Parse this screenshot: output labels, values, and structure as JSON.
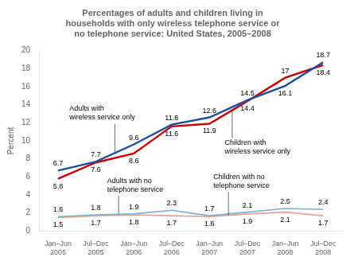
{
  "chart_data": {
    "type": "line",
    "title": "Percentages of adults and children living in\nhouseholds with only wireless telephone service or\nno telephone service: United States, 2005–2008",
    "ylabel": "Percent",
    "categories": [
      "Jan–Jun\n2005",
      "Jul–Dec\n2005",
      "Jan–Jun\n2006",
      "Jul–Dec\n2006",
      "Jan–Jun\n2007",
      "Jul–Dec\n2007",
      "Jan–Jun\n2008",
      "Jul–Dec\n2008"
    ],
    "series": [
      {
        "name": "Adults with\nwireless service only",
        "color": "#1f4e9e",
        "values": [
          6.7,
          7.7,
          9.6,
          11.8,
          12.6,
          14.5,
          16.1,
          18.7
        ]
      },
      {
        "name": "Children with\nwireless service only",
        "color": "#cc0000",
        "values": [
          5.8,
          7.6,
          8.6,
          11.6,
          11.9,
          14.4,
          17.0,
          18.4
        ]
      },
      {
        "name": "Adults with no\ntelephone service",
        "color": "#7bafd4",
        "values": [
          1.6,
          1.8,
          1.9,
          2.3,
          1.7,
          2.1,
          2.5,
          2.4
        ]
      },
      {
        "name": "Children with no\ntelephone service",
        "color": "#e8a090",
        "values": [
          1.5,
          1.7,
          1.8,
          1.7,
          1.6,
          1.9,
          2.1,
          1.7
        ]
      }
    ],
    "ylim": [
      0,
      20
    ],
    "yticks": [
      0,
      2,
      4,
      6,
      8,
      10,
      12,
      14,
      16,
      18,
      20
    ],
    "grid": false,
    "data_labels": true,
    "marker": "none"
  }
}
